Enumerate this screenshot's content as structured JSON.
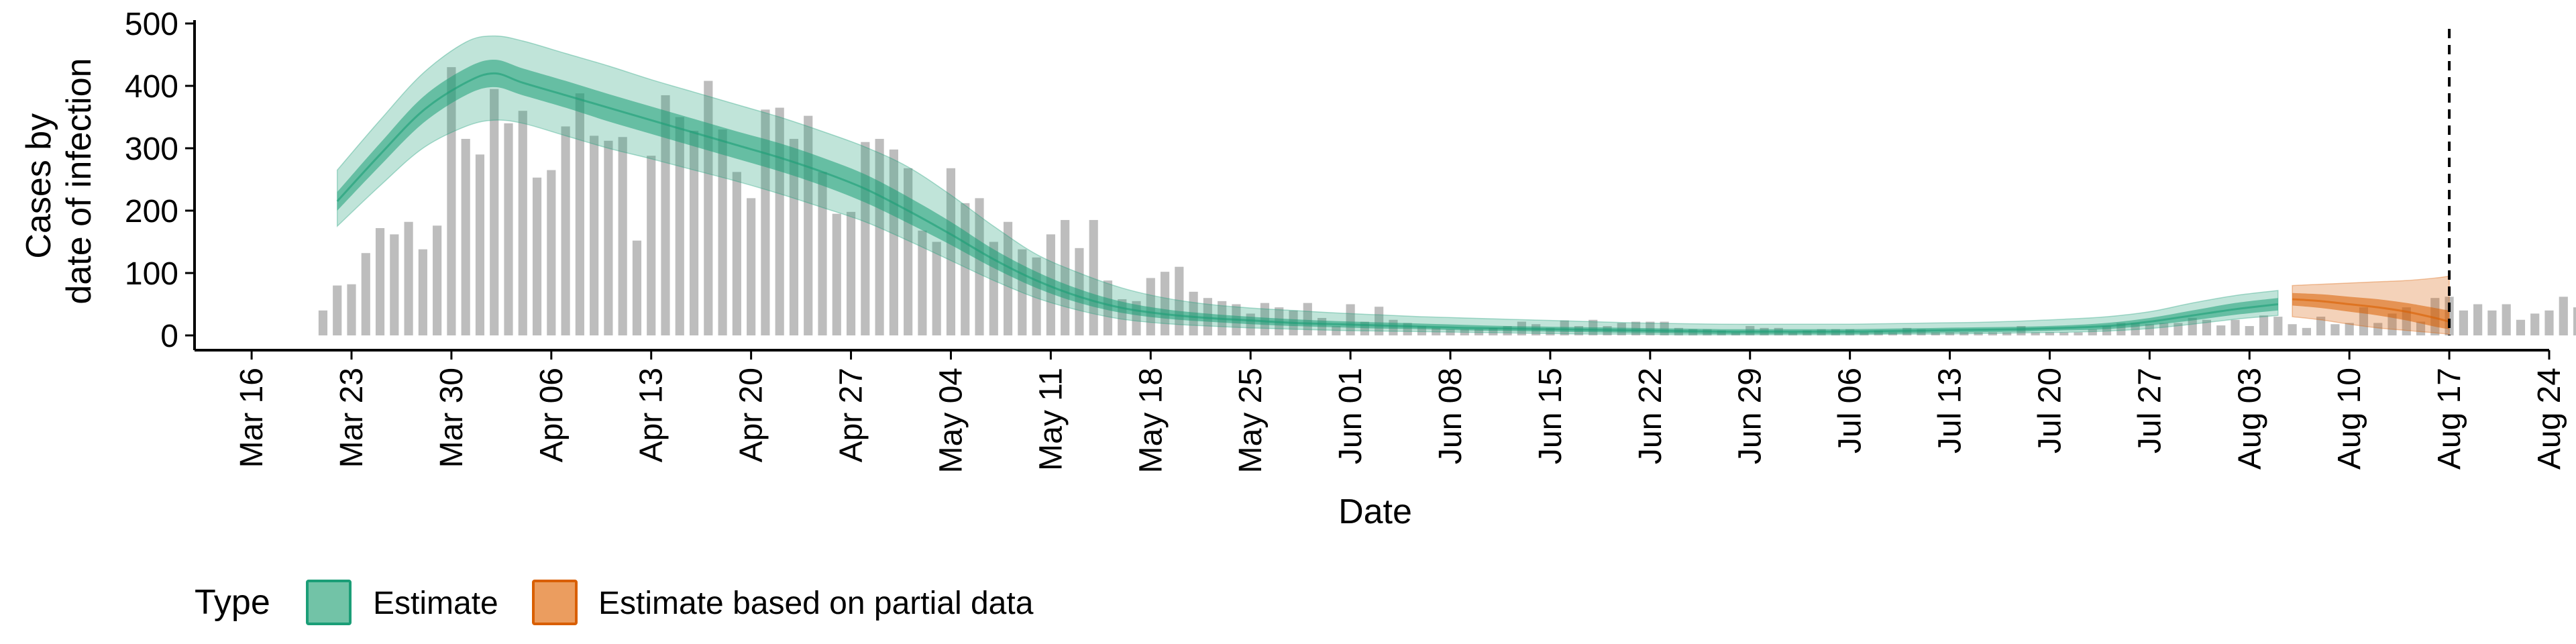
{
  "chart_data": {
    "type": "bar+area",
    "xlabel": "Date",
    "ylabel_lines": [
      "Cases by",
      "date of infection"
    ],
    "ylim": [
      0,
      500
    ],
    "yticks": [
      0,
      100,
      200,
      300,
      400,
      500
    ],
    "xrange": [
      "2020-03-12",
      "2020-08-24"
    ],
    "xticks": [
      {
        "date": "2020-03-16",
        "label": "Mar 16"
      },
      {
        "date": "2020-03-23",
        "label": "Mar 23"
      },
      {
        "date": "2020-03-30",
        "label": "Mar 30"
      },
      {
        "date": "2020-04-06",
        "label": "Apr 06"
      },
      {
        "date": "2020-04-13",
        "label": "Apr 13"
      },
      {
        "date": "2020-04-20",
        "label": "Apr 20"
      },
      {
        "date": "2020-04-27",
        "label": "Apr 27"
      },
      {
        "date": "2020-05-04",
        "label": "May 04"
      },
      {
        "date": "2020-05-11",
        "label": "May 11"
      },
      {
        "date": "2020-05-18",
        "label": "May 18"
      },
      {
        "date": "2020-05-25",
        "label": "May 25"
      },
      {
        "date": "2020-06-01",
        "label": "Jun 01"
      },
      {
        "date": "2020-06-08",
        "label": "Jun 08"
      },
      {
        "date": "2020-06-15",
        "label": "Jun 15"
      },
      {
        "date": "2020-06-22",
        "label": "Jun 22"
      },
      {
        "date": "2020-06-29",
        "label": "Jun 29"
      },
      {
        "date": "2020-07-06",
        "label": "Jul 06"
      },
      {
        "date": "2020-07-13",
        "label": "Jul 13"
      },
      {
        "date": "2020-07-20",
        "label": "Jul 20"
      },
      {
        "date": "2020-07-27",
        "label": "Jul 27"
      },
      {
        "date": "2020-08-03",
        "label": "Aug 03"
      },
      {
        "date": "2020-08-10",
        "label": "Aug 10"
      },
      {
        "date": "2020-08-17",
        "label": "Aug 17"
      },
      {
        "date": "2020-08-24",
        "label": "Aug 24"
      }
    ],
    "bars": {
      "start_date": "2020-03-21",
      "color": "#bdbdbd",
      "values": [
        40,
        80,
        82,
        132,
        172,
        162,
        182,
        138,
        176,
        430,
        315,
        290,
        395,
        340,
        360,
        253,
        265,
        335,
        388,
        320,
        312,
        318,
        152,
        288,
        385,
        350,
        328,
        408,
        330,
        262,
        220,
        362,
        365,
        315,
        352,
        262,
        195,
        198,
        310,
        315,
        298,
        268,
        168,
        150,
        268,
        212,
        220,
        150,
        182,
        138,
        125,
        162,
        185,
        140,
        185,
        88,
        58,
        55,
        92,
        102,
        110,
        70,
        60,
        55,
        50,
        35,
        52,
        45,
        40,
        52,
        28,
        15,
        50,
        22,
        46,
        25,
        20,
        15,
        12,
        10,
        10,
        10,
        12,
        15,
        22,
        18,
        12,
        24,
        15,
        25,
        15,
        20,
        22,
        22,
        22,
        12,
        10,
        10,
        8,
        5,
        15,
        12,
        12,
        5,
        8,
        10,
        10,
        10,
        5,
        8,
        5,
        12,
        10,
        5,
        5,
        5,
        5,
        5,
        5,
        15,
        5,
        5,
        5,
        5,
        10,
        15,
        20,
        20,
        18,
        20,
        20,
        28,
        25,
        16,
        25,
        15,
        32,
        30,
        18,
        12,
        30,
        18,
        20,
        45,
        20,
        35,
        45,
        22,
        60,
        62,
        40,
        50,
        40,
        50,
        25,
        35,
        40,
        62,
        45,
        60,
        40,
        30,
        25,
        15,
        15
      ]
    },
    "series": [
      {
        "name": "Estimate",
        "color": "#1b9e77",
        "dates": [
          "2020-03-22",
          "2020-03-25",
          "2020-03-28",
          "2020-03-31",
          "2020-04-02",
          "2020-04-04",
          "2020-04-07",
          "2020-04-10",
          "2020-04-13",
          "2020-04-16",
          "2020-04-19",
          "2020-04-22",
          "2020-04-25",
          "2020-04-28",
          "2020-05-01",
          "2020-05-04",
          "2020-05-07",
          "2020-05-10",
          "2020-05-13",
          "2020-05-16",
          "2020-05-19",
          "2020-05-22",
          "2020-05-25",
          "2020-05-28",
          "2020-05-31",
          "2020-06-03",
          "2020-06-06",
          "2020-06-09",
          "2020-06-12",
          "2020-06-15",
          "2020-06-18",
          "2020-06-21",
          "2020-06-24",
          "2020-06-27",
          "2020-06-30",
          "2020-07-03",
          "2020-07-06",
          "2020-07-09",
          "2020-07-12",
          "2020-07-15",
          "2020-07-18",
          "2020-07-21",
          "2020-07-24",
          "2020-07-27",
          "2020-07-30",
          "2020-08-02",
          "2020-08-05"
        ],
        "median": [
          215,
          290,
          360,
          405,
          420,
          405,
          385,
          365,
          345,
          325,
          305,
          285,
          262,
          235,
          200,
          162,
          122,
          88,
          62,
          44,
          34,
          28,
          24,
          20,
          18,
          16,
          14,
          12,
          11,
          10,
          9,
          8,
          7,
          6,
          6,
          6,
          6,
          7,
          8,
          9,
          10,
          12,
          15,
          22,
          32,
          42,
          50
        ],
        "inner": [
          [
            200,
            230
          ],
          [
            272,
            308
          ],
          [
            340,
            382
          ],
          [
            385,
            428
          ],
          [
            398,
            442
          ],
          [
            385,
            428
          ],
          [
            365,
            408
          ],
          [
            343,
            387
          ],
          [
            323,
            367
          ],
          [
            303,
            347
          ],
          [
            283,
            327
          ],
          [
            263,
            308
          ],
          [
            240,
            285
          ],
          [
            213,
            258
          ],
          [
            180,
            222
          ],
          [
            145,
            182
          ],
          [
            108,
            138
          ],
          [
            76,
            102
          ],
          [
            52,
            74
          ],
          [
            36,
            54
          ],
          [
            27,
            42
          ],
          [
            22,
            35
          ],
          [
            18,
            30
          ],
          [
            15,
            26
          ],
          [
            13,
            23
          ],
          [
            11,
            21
          ],
          [
            10,
            19
          ],
          [
            8,
            17
          ],
          [
            7,
            15
          ],
          [
            6,
            14
          ],
          [
            5,
            13
          ],
          [
            4,
            12
          ],
          [
            3,
            11
          ],
          [
            2,
            10
          ],
          [
            2,
            10
          ],
          [
            2,
            10
          ],
          [
            2,
            10
          ],
          [
            3,
            11
          ],
          [
            4,
            12
          ],
          [
            5,
            13
          ],
          [
            6,
            14
          ],
          [
            8,
            16
          ],
          [
            10,
            20
          ],
          [
            16,
            28
          ],
          [
            24,
            40
          ],
          [
            33,
            52
          ],
          [
            40,
            60
          ]
        ],
        "outer": [
          [
            175,
            265
          ],
          [
            240,
            345
          ],
          [
            300,
            420
          ],
          [
            335,
            470
          ],
          [
            345,
            480
          ],
          [
            340,
            472
          ],
          [
            320,
            452
          ],
          [
            300,
            432
          ],
          [
            283,
            410
          ],
          [
            265,
            390
          ],
          [
            247,
            370
          ],
          [
            227,
            350
          ],
          [
            205,
            327
          ],
          [
            182,
            302
          ],
          [
            152,
            270
          ],
          [
            120,
            225
          ],
          [
            88,
            175
          ],
          [
            60,
            130
          ],
          [
            40,
            100
          ],
          [
            26,
            76
          ],
          [
            19,
            60
          ],
          [
            15,
            50
          ],
          [
            12,
            44
          ],
          [
            10,
            40
          ],
          [
            8,
            36
          ],
          [
            7,
            33
          ],
          [
            6,
            30
          ],
          [
            5,
            28
          ],
          [
            4,
            26
          ],
          [
            3,
            24
          ],
          [
            2,
            22
          ],
          [
            2,
            20
          ],
          [
            1,
            19
          ],
          [
            1,
            18
          ],
          [
            1,
            18
          ],
          [
            1,
            18
          ],
          [
            1,
            18
          ],
          [
            2,
            19
          ],
          [
            2,
            20
          ],
          [
            3,
            21
          ],
          [
            4,
            23
          ],
          [
            5,
            26
          ],
          [
            7,
            30
          ],
          [
            11,
            38
          ],
          [
            18,
            52
          ],
          [
            26,
            64
          ],
          [
            32,
            72
          ]
        ]
      },
      {
        "name": "Estimate based on partial data",
        "color": "#d95f02",
        "dates": [
          "2020-08-06",
          "2020-08-08",
          "2020-08-10",
          "2020-08-12",
          "2020-08-14",
          "2020-08-16",
          "2020-08-17"
        ],
        "median": [
          58,
          55,
          50,
          45,
          38,
          28,
          22
        ],
        "inner": [
          [
            48,
            68
          ],
          [
            44,
            66
          ],
          [
            38,
            62
          ],
          [
            32,
            58
          ],
          [
            24,
            52
          ],
          [
            14,
            44
          ],
          [
            10,
            40
          ]
        ],
        "outer": [
          [
            30,
            80
          ],
          [
            25,
            82
          ],
          [
            18,
            84
          ],
          [
            12,
            86
          ],
          [
            8,
            88
          ],
          [
            4,
            92
          ],
          [
            2,
            95
          ]
        ]
      }
    ],
    "vline_date": "2020-08-17",
    "legend": {
      "title": "Type",
      "position": "bottom-left",
      "items": [
        {
          "label": "Estimate",
          "fill": "#72c3a7",
          "stroke": "#1b9e77"
        },
        {
          "label": "Estimate based on partial data",
          "fill": "#eb9d5f",
          "stroke": "#d95f02"
        }
      ]
    }
  }
}
